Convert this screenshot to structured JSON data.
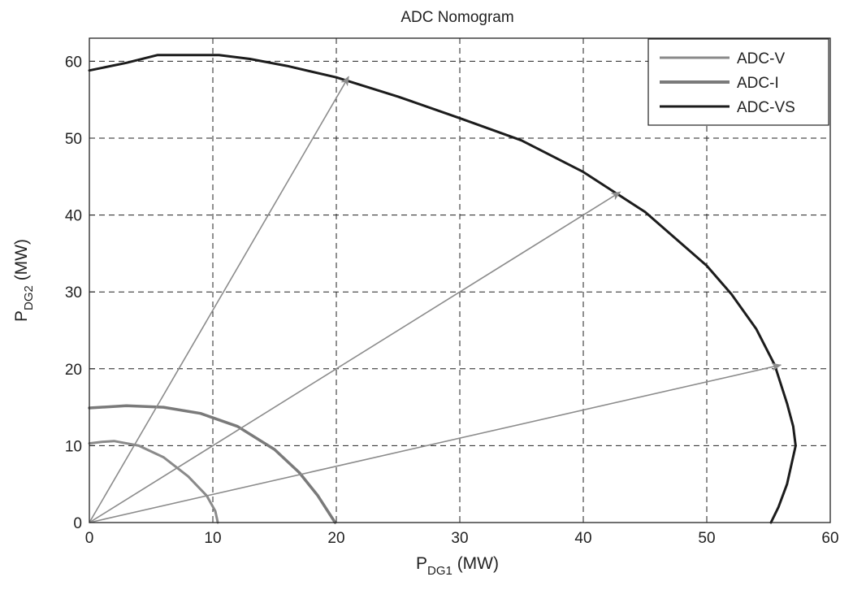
{
  "chart_data": {
    "type": "line",
    "title": "ADC Nomogram",
    "xlabel": {
      "base": "P",
      "sub": "DG1",
      "unit": " (MW)"
    },
    "ylabel": {
      "base": "P",
      "sub": "DG2",
      "unit": " (MW)"
    },
    "xlim": [
      0,
      60
    ],
    "ylim": [
      0,
      63
    ],
    "xticks": [
      0,
      10,
      20,
      30,
      40,
      50,
      60
    ],
    "yticks": [
      0,
      10,
      20,
      30,
      40,
      50,
      60
    ],
    "grid": true,
    "grid_style": "dashed",
    "legend_position": "top-right",
    "colors": {
      "adc_v": "#8a8a8a",
      "adc_i": "#7a7a7a",
      "adc_vs": "#1c1c1c",
      "arrows": "#8c8c8c",
      "grid": "#222222"
    },
    "series": [
      {
        "name": "ADC-V",
        "key": "adc_v",
        "x": [
          0,
          1,
          2,
          4,
          6,
          8,
          9.5,
          10.2,
          10.4
        ],
        "y": [
          10.3,
          10.5,
          10.6,
          10.0,
          8.5,
          6.0,
          3.5,
          1.5,
          0
        ]
      },
      {
        "name": "ADC-I",
        "key": "adc_i",
        "x": [
          0,
          3,
          6,
          9,
          12,
          15,
          17,
          18.5,
          19.5,
          19.9
        ],
        "y": [
          14.9,
          15.2,
          15.0,
          14.2,
          12.5,
          9.5,
          6.5,
          3.5,
          1.0,
          0
        ]
      },
      {
        "name": "ADC-VS",
        "key": "adc_vs",
        "x": [
          0,
          3,
          5.5,
          8,
          10.5,
          13,
          16,
          20,
          25,
          30,
          35,
          40,
          45,
          50,
          52,
          54,
          55.5,
          56.5,
          57,
          57.2,
          56.5,
          55.8,
          55.2
        ],
        "y": [
          58.8,
          59.8,
          60.8,
          60.8,
          60.8,
          60.3,
          59.4,
          57.9,
          55.4,
          52.6,
          49.7,
          45.6,
          40.4,
          33.4,
          29.7,
          25.2,
          20.5,
          15.5,
          12.5,
          10.0,
          5.0,
          2.0,
          0
        ]
      }
    ],
    "arrows": [
      {
        "from": [
          0,
          0
        ],
        "to": [
          21,
          58
        ]
      },
      {
        "from": [
          0,
          0
        ],
        "to": [
          43,
          43
        ]
      },
      {
        "from": [
          0,
          0
        ],
        "to": [
          56,
          20.5
        ]
      }
    ]
  }
}
